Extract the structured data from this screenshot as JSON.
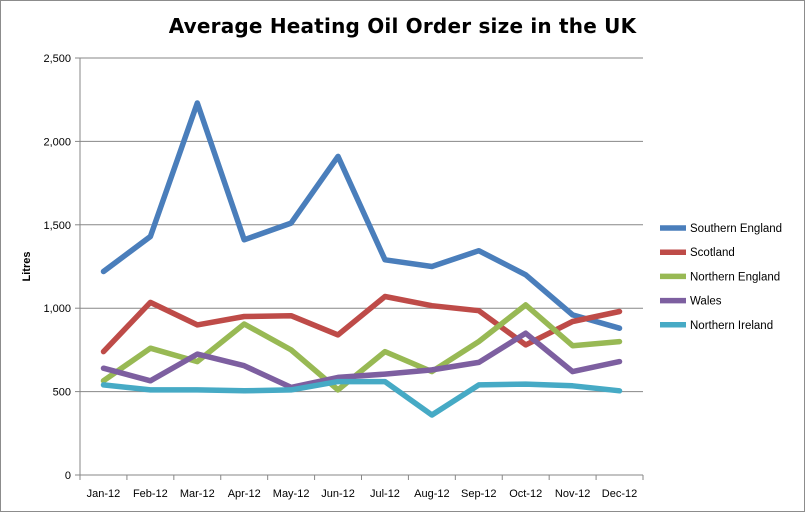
{
  "chart_data": {
    "type": "line",
    "title": "Average Heating Oil Order size in the UK",
    "xlabel": "",
    "ylabel": "Litres",
    "ylim": [
      0,
      2500
    ],
    "yticks": [
      0,
      500,
      1000,
      1500,
      2000,
      2500
    ],
    "ytick_labels": [
      "0",
      "500",
      "1,000",
      "1,500",
      "2,000",
      "2,500"
    ],
    "categories": [
      "Jan-12",
      "Feb-12",
      "Mar-12",
      "Apr-12",
      "May-12",
      "Jun-12",
      "Jul-12",
      "Aug-12",
      "Sep-12",
      "Oct-12",
      "Nov-12",
      "Dec-12"
    ],
    "grid": "horizontal",
    "legend": "right",
    "series": [
      {
        "name": "Southern England",
        "color": "#4a7ebb",
        "values": [
          1220,
          1430,
          2230,
          1410,
          1510,
          1910,
          1290,
          1250,
          1345,
          1200,
          960,
          880
        ]
      },
      {
        "name": "Scotland",
        "color": "#be4b48",
        "values": [
          740,
          1035,
          900,
          950,
          955,
          840,
          1070,
          1015,
          985,
          780,
          920,
          980
        ]
      },
      {
        "name": "Northern England",
        "color": "#98b954",
        "values": [
          565,
          760,
          680,
          905,
          750,
          510,
          740,
          620,
          800,
          1020,
          775,
          800
        ]
      },
      {
        "name": "Wales",
        "color": "#7d5fa0",
        "values": [
          640,
          565,
          725,
          655,
          525,
          585,
          605,
          630,
          675,
          850,
          620,
          680
        ]
      },
      {
        "name": "Northern Ireland",
        "color": "#46aac5",
        "values": [
          540,
          510,
          510,
          505,
          510,
          560,
          560,
          360,
          540,
          545,
          535,
          505
        ]
      }
    ]
  }
}
